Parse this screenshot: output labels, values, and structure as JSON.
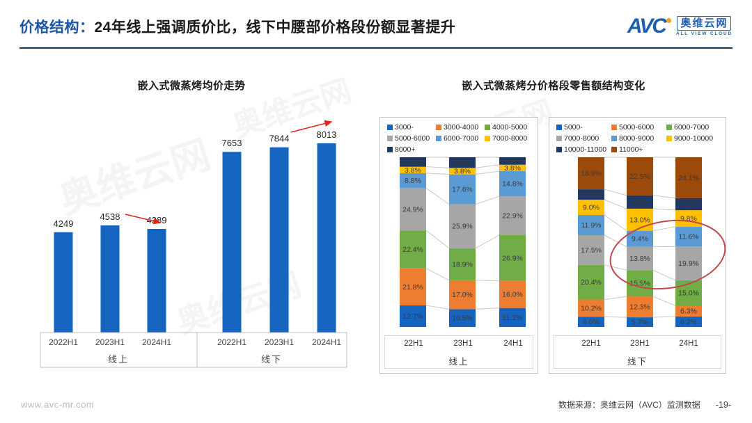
{
  "header": {
    "highlight": "价格结构：",
    "title": "24年线上强调质价比，线下中腰部价格段份额显著提升"
  },
  "logo": {
    "brand": "AVC",
    "name": "奥维云网",
    "tagline": "ALL VIEW CLOUD"
  },
  "right_chart_title": "嵌入式微蒸烤分价格段零售额结构变化",
  "watermark_text": "奥维云网",
  "accent_colors": {
    "header_blue": "#1c57a5",
    "rule_navy": "#17375e",
    "arrow_red": "#e2231a",
    "ellipse_red": "#c4454d",
    "box_border": "#bfbfbf"
  },
  "chart_data": [
    {
      "type": "bar",
      "title": "嵌入式微蒸烤均价走势",
      "bar_color": "#1565c0",
      "ylim": [
        0,
        8600
      ],
      "grid": false,
      "groups": [
        {
          "label": "线上",
          "categories": [
            "2022H1",
            "2023H1",
            "2024H1"
          ],
          "values": [
            4249,
            4538,
            4389
          ],
          "trend_arrow": "down"
        },
        {
          "label": "线下",
          "categories": [
            "2022H1",
            "2023H1",
            "2024H1"
          ],
          "values": [
            7653,
            7844,
            8013
          ],
          "trend_arrow": "up"
        }
      ]
    },
    {
      "type": "stacked-bar",
      "panel_label": "线上",
      "categories": [
        "22H1",
        "23H1",
        "24H1"
      ],
      "unit": "%",
      "series": [
        {
          "name": "3000-",
          "color": "#1565c0",
          "values": [
            12.7,
            10.5,
            11.2
          ]
        },
        {
          "name": "3000-4000",
          "color": "#ed7d31",
          "values": [
            21.8,
            17.0,
            16.0
          ]
        },
        {
          "name": "4000-5000",
          "color": "#70ad47",
          "values": [
            22.4,
            18.9,
            26.9
          ]
        },
        {
          "name": "5000-6000",
          "color": "#a6a6a6",
          "values": [
            24.9,
            25.9,
            22.9
          ]
        },
        {
          "name": "6000-7000",
          "color": "#5b9bd5",
          "values": [
            8.8,
            17.6,
            14.8
          ]
        },
        {
          "name": "7000-8000",
          "color": "#ffc000",
          "values": [
            3.8,
            3.8,
            3.8
          ]
        },
        {
          "name": "8000+",
          "color": "#1f3864",
          "values": [
            5.6,
            6.3,
            4.4
          ]
        }
      ]
    },
    {
      "type": "stacked-bar",
      "panel_label": "线下",
      "categories": [
        "22H1",
        "23H1",
        "24H1"
      ],
      "unit": "%",
      "annotation": "red-ellipse-around-mid-segments-23H1-24H1",
      "series": [
        {
          "name": "5000-",
          "color": "#1565c0",
          "values": [
            6.0,
            5.7,
            6.2
          ]
        },
        {
          "name": "5000-6000",
          "color": "#ed7d31",
          "values": [
            10.2,
            12.3,
            6.3
          ]
        },
        {
          "name": "6000-7000",
          "color": "#70ad47",
          "values": [
            20.4,
            15.5,
            15.0
          ]
        },
        {
          "name": "7000-8000",
          "color": "#a6a6a6",
          "values": [
            17.5,
            13.8,
            19.9
          ]
        },
        {
          "name": "8000-9000",
          "color": "#5b9bd5",
          "values": [
            11.9,
            9.4,
            11.6
          ]
        },
        {
          "name": "9000-10000",
          "color": "#ffc000",
          "values": [
            9.0,
            13.0,
            9.8
          ]
        },
        {
          "name": "10000-11000",
          "color": "#1f3864",
          "values": [
            6.1,
            7.8,
            7.1
          ]
        },
        {
          "name": "11000+",
          "color": "#9c4a0c",
          "values": [
            18.9,
            22.5,
            24.1
          ]
        }
      ]
    }
  ],
  "footer": {
    "website": "www.avc-mr.com",
    "source": "数据来源：奥维云网（AVC）监测数据",
    "page": "-19-"
  }
}
